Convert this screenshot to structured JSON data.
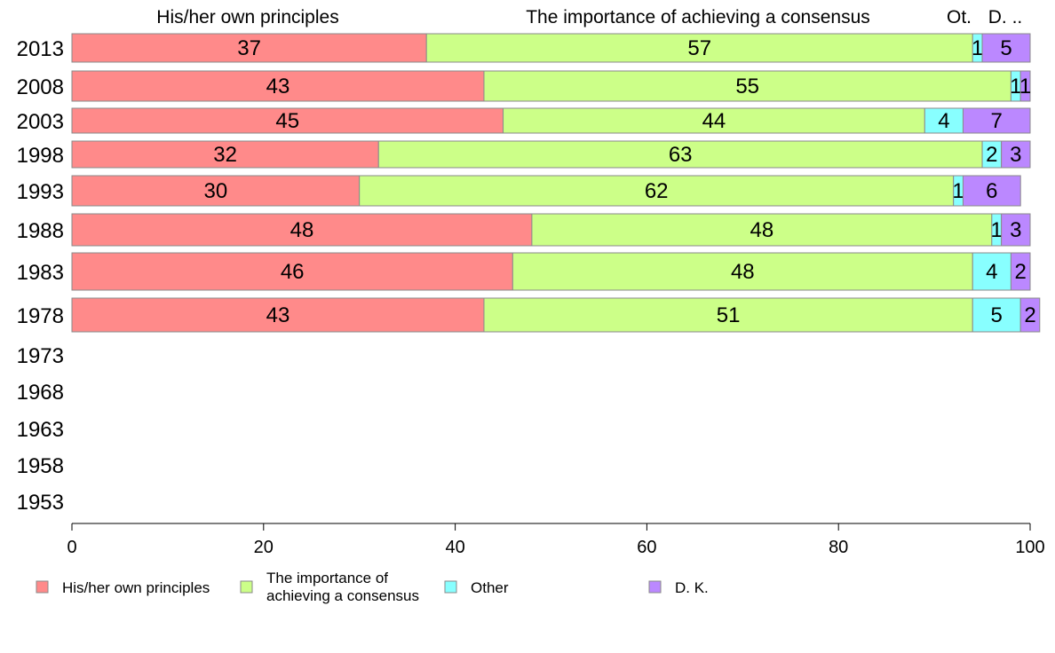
{
  "chart_data": {
    "type": "bar",
    "orientation": "horizontal",
    "stacked": true,
    "column_headers": [
      "His/her own principles",
      "The importance of achieving a consensus",
      "Ot.",
      "D. .."
    ],
    "categories": [
      "2013",
      "2008",
      "2003",
      "1998",
      "1993",
      "1988",
      "1983",
      "1978",
      "1973",
      "1968",
      "1963",
      "1958",
      "1953"
    ],
    "series": [
      {
        "name": "His/her own principles",
        "color": "#ff8a8a",
        "values": [
          37,
          43,
          45,
          32,
          30,
          48,
          46,
          43,
          null,
          null,
          null,
          null,
          null
        ],
        "labels": [
          "37",
          "43",
          "45",
          "32",
          "30",
          "48",
          "46",
          "43",
          "",
          "",
          "",
          "",
          ""
        ]
      },
      {
        "name": "The importance of achieving a consensus",
        "color": "#ccff88",
        "values": [
          57,
          55,
          44,
          63,
          62,
          48,
          48,
          51,
          null,
          null,
          null,
          null,
          null
        ],
        "labels": [
          "57",
          "55",
          "44",
          "63",
          "62",
          "48",
          "48",
          "51",
          "",
          "",
          "",
          "",
          ""
        ]
      },
      {
        "name": "Other",
        "color": "#88ffff",
        "values": [
          1,
          1,
          4,
          2,
          1,
          1,
          4,
          5,
          null,
          null,
          null,
          null,
          null
        ],
        "labels": [
          "1",
          "1",
          "4",
          "2",
          "1",
          "1",
          "4",
          "5",
          "",
          "",
          "",
          "",
          ""
        ]
      },
      {
        "name": "D. K.",
        "color": "#bb88ff",
        "values": [
          5,
          1,
          7,
          3,
          6,
          3,
          2,
          2,
          null,
          null,
          null,
          null,
          null
        ],
        "labels": [
          "5",
          "1",
          "7",
          "3",
          "6",
          "3",
          "2",
          "2",
          "",
          "",
          "",
          "",
          ""
        ]
      }
    ],
    "legend_labels": [
      "His/her own principles",
      "The importance of\nachieving a consensus",
      "Other",
      "D. K."
    ],
    "xlim": [
      0,
      100
    ],
    "xticks": [
      0,
      20,
      40,
      60,
      80,
      100
    ],
    "grid": false,
    "legend_position": "bottom"
  }
}
